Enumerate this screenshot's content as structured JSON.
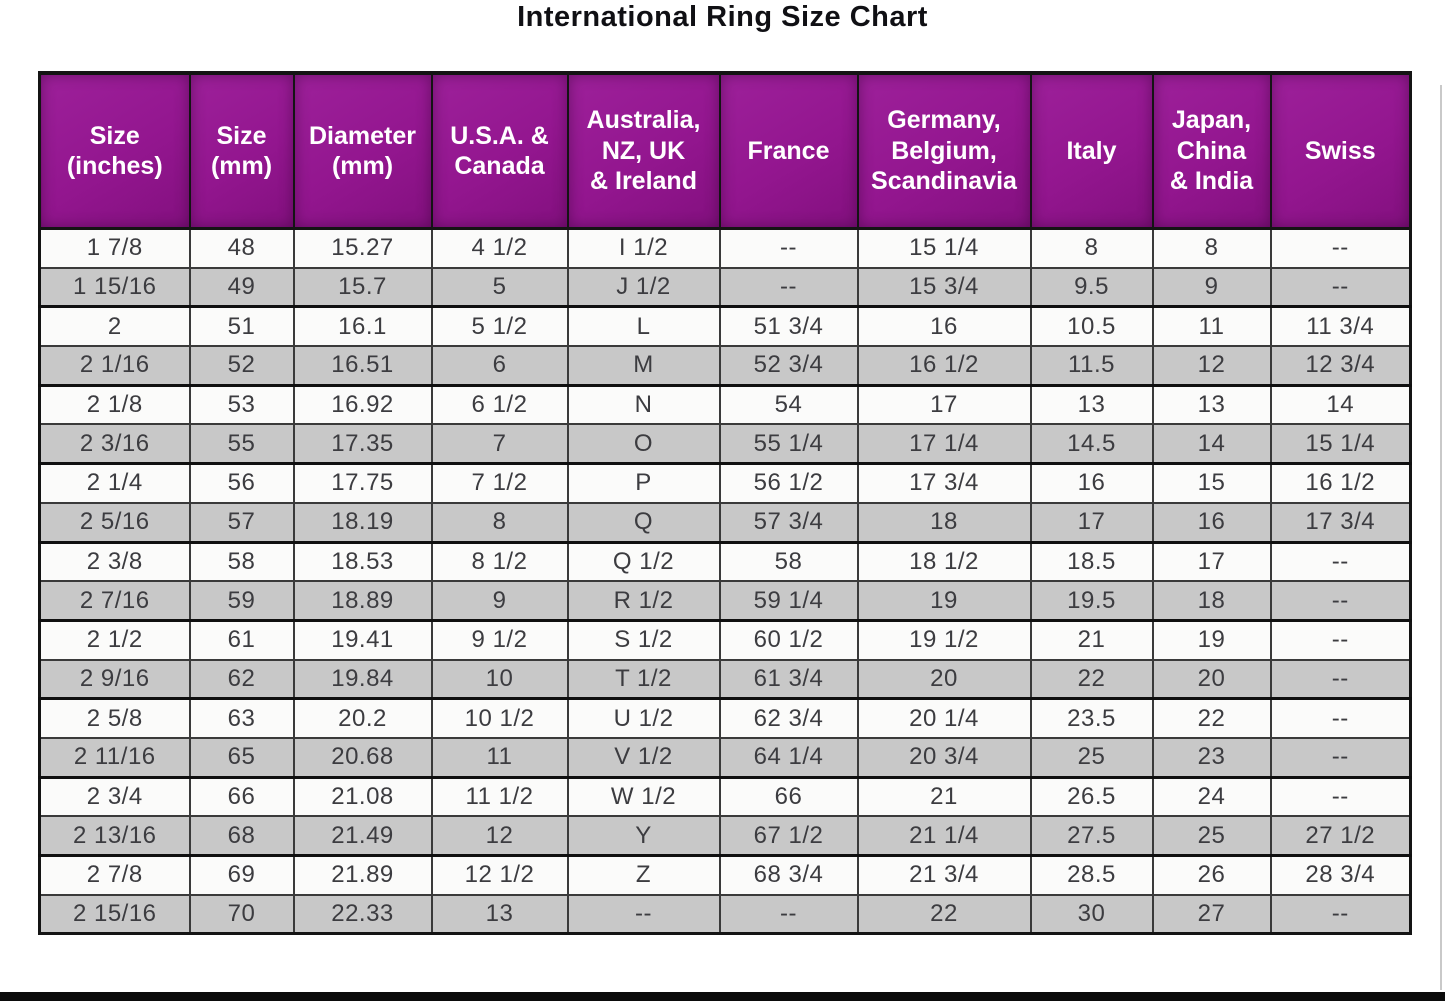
{
  "title": "International Ring Size Chart",
  "colors": {
    "header_bg": "#93168f",
    "header_text": "#ffffff",
    "row_bg": "#fbfbfa",
    "row_alt_bg": "#c8c8c8",
    "border": "#141414",
    "cell_text": "#3c3c40",
    "bottom_bar": "#0b0b0b"
  },
  "chart_data": {
    "type": "table",
    "title": "International Ring Size Chart",
    "columns": [
      "Size\n(inches)",
      "Size\n(mm)",
      "Diameter\n(mm)",
      "U.S.A. &\nCanada",
      "Australia,\nNZ, UK\n& Ireland",
      "France",
      "Germany,\nBelgium,\nScandinavia",
      "Italy",
      "Japan,\nChina\n& India",
      "Swiss"
    ],
    "rows": [
      [
        "1 7/8",
        "48",
        "15.27",
        "4 1/2",
        "I 1/2",
        "--",
        "15 1/4",
        "8",
        "8",
        "--"
      ],
      [
        "1 15/16",
        "49",
        "15.7",
        "5",
        "J 1/2",
        "--",
        "15 3/4",
        "9.5",
        "9",
        "--"
      ],
      [
        "2",
        "51",
        "16.1",
        "5 1/2",
        "L",
        "51 3/4",
        "16",
        "10.5",
        "11",
        "11 3/4"
      ],
      [
        "2 1/16",
        "52",
        "16.51",
        "6",
        "M",
        "52 3/4",
        "16 1/2",
        "11.5",
        "12",
        "12 3/4"
      ],
      [
        "2 1/8",
        "53",
        "16.92",
        "6 1/2",
        "N",
        "54",
        "17",
        "13",
        "13",
        "14"
      ],
      [
        "2 3/16",
        "55",
        "17.35",
        "7",
        "O",
        "55 1/4",
        "17 1/4",
        "14.5",
        "14",
        "15 1/4"
      ],
      [
        "2 1/4",
        "56",
        "17.75",
        "7 1/2",
        "P",
        "56 1/2",
        "17 3/4",
        "16",
        "15",
        "16 1/2"
      ],
      [
        "2 5/16",
        "57",
        "18.19",
        "8",
        "Q",
        "57 3/4",
        "18",
        "17",
        "16",
        "17 3/4"
      ],
      [
        "2 3/8",
        "58",
        "18.53",
        "8 1/2",
        "Q 1/2",
        "58",
        "18 1/2",
        "18.5",
        "17",
        "--"
      ],
      [
        "2 7/16",
        "59",
        "18.89",
        "9",
        "R 1/2",
        "59 1/4",
        "19",
        "19.5",
        "18",
        "--"
      ],
      [
        "2 1/2",
        "61",
        "19.41",
        "9 1/2",
        "S 1/2",
        "60 1/2",
        "19 1/2",
        "21",
        "19",
        "--"
      ],
      [
        "2 9/16",
        "62",
        "19.84",
        "10",
        "T 1/2",
        "61 3/4",
        "20",
        "22",
        "20",
        "--"
      ],
      [
        "2 5/8",
        "63",
        "20.2",
        "10 1/2",
        "U 1/2",
        "62 3/4",
        "20 1/4",
        "23.5",
        "22",
        "--"
      ],
      [
        "2 11/16",
        "65",
        "20.68",
        "11",
        "V 1/2",
        "64 1/4",
        "20 3/4",
        "25",
        "23",
        "--"
      ],
      [
        "2 3/4",
        "66",
        "21.08",
        "11 1/2",
        "W 1/2",
        "66",
        "21",
        "26.5",
        "24",
        "--"
      ],
      [
        "2 13/16",
        "68",
        "21.49",
        "12",
        "Y",
        "67 1/2",
        "21 1/4",
        "27.5",
        "25",
        "27 1/2"
      ],
      [
        "2 7/8",
        "69",
        "21.89",
        "12 1/2",
        "Z",
        "68 3/4",
        "21 3/4",
        "28.5",
        "26",
        "28 3/4"
      ],
      [
        "2 15/16",
        "70",
        "22.33",
        "13",
        "--",
        "--",
        "22",
        "30",
        "27",
        "--"
      ]
    ]
  }
}
